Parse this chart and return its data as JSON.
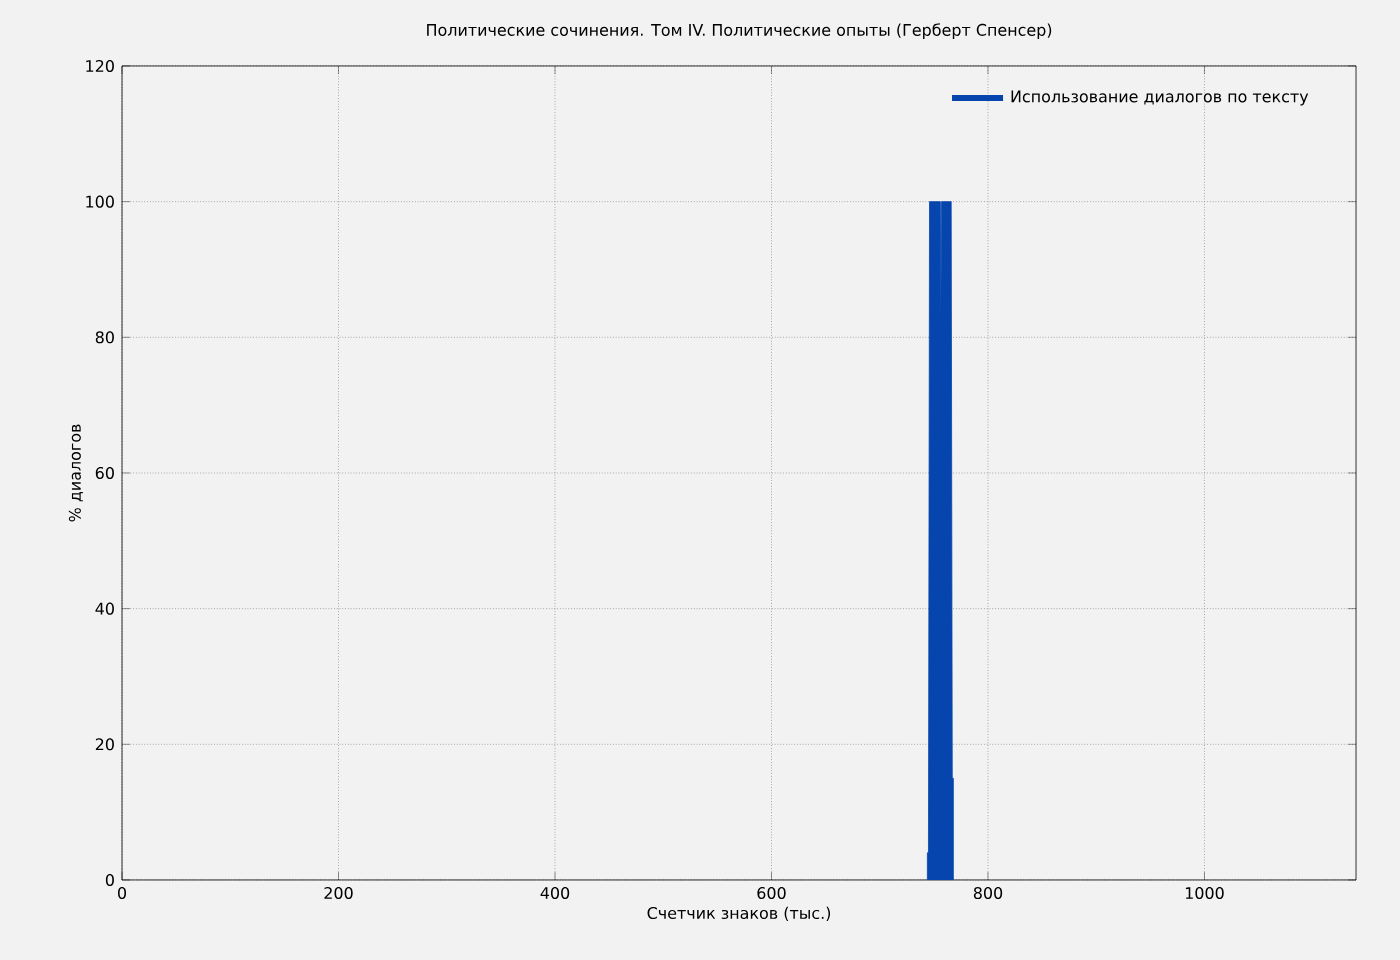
{
  "chart_data": {
    "type": "area",
    "title": "Политические сочинения. Том IV. Политические опыты (Герберт Спенсер)",
    "xlabel": "Счетчик знаков (тыс.)",
    "ylabel": "% диалогов",
    "series": [
      {
        "name": "Использование диалогов по тексту",
        "color": "#0645ad",
        "x": [
          744,
          745,
          746,
          756,
          756.5,
          757,
          766,
          767,
          768
        ],
        "values": [
          4,
          4,
          100,
          100,
          83,
          100,
          100,
          15,
          15
        ]
      }
    ],
    "xlim": [
      0,
      1140
    ],
    "xticks": [
      0,
      200,
      400,
      600,
      800,
      1000
    ],
    "ylim": [
      0,
      120
    ],
    "yticks": [
      0,
      20,
      40,
      60,
      80,
      100,
      120
    ],
    "grid": true,
    "legend": "top right"
  }
}
